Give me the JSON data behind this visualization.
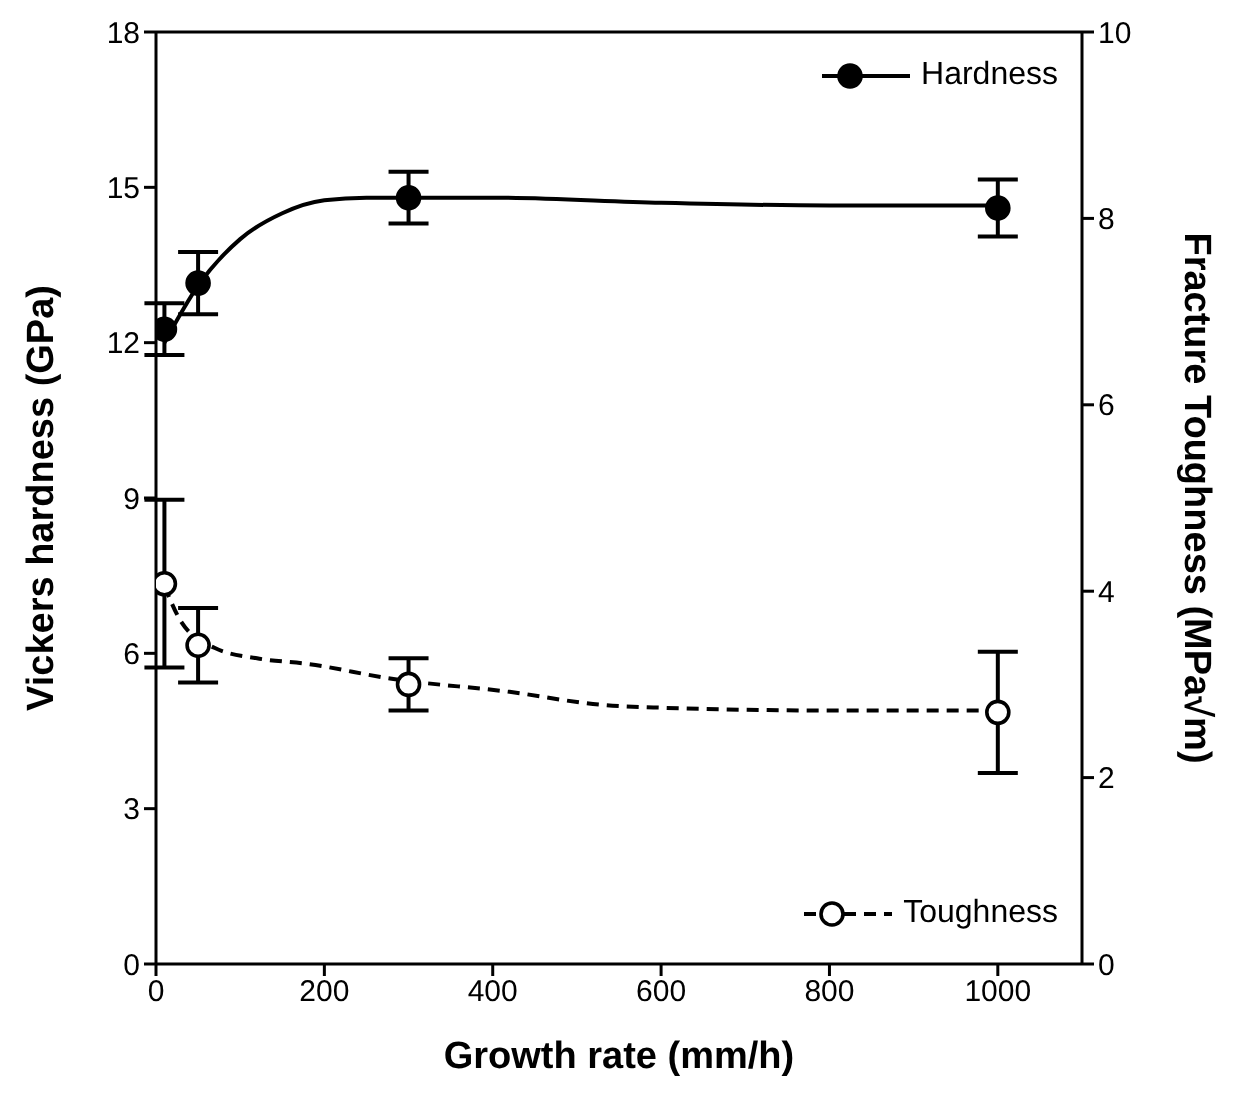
{
  "chart_data": {
    "type": "scatter",
    "xlabel": "Growth rate (mm/h)",
    "ylabel": "Vickers hardness (GPa)",
    "y2label": "Fracture Toughness (MPa√m)",
    "xlim": [
      0,
      1100
    ],
    "xticks": [
      0,
      200,
      400,
      600,
      800,
      1000
    ],
    "ylim": [
      0,
      18
    ],
    "yticks": [
      0,
      3,
      6,
      9,
      12,
      15,
      18
    ],
    "y2lim": [
      0,
      10
    ],
    "y2ticks": [
      0,
      2,
      4,
      6,
      8,
      10
    ],
    "marker": "circle",
    "legend": "right",
    "series": [
      {
        "name": "Hardness",
        "color": "#000000",
        "line_style": "solid",
        "x": [
          10,
          50,
          300,
          1000
        ],
        "values": [
          12.26,
          13.15,
          14.8,
          14.6
        ],
        "errors": [
          0.5,
          0.6,
          0.5,
          0.55
        ]
      },
      {
        "name": "Toughness",
        "axis": "y2",
        "color": "#ffffff",
        "line_style": "dashed",
        "x": [
          10,
          50,
          300,
          1000
        ],
        "values": [
          4.08,
          3.42,
          3.0,
          2.7
        ],
        "errors": [
          0.9,
          0.4,
          0.28,
          0.65
        ]
      },
      {
        "type": "line",
        "color": "#000000",
        "line_style": "solid",
        "marker": "none",
        "x": [
          10,
          50,
          100,
          150,
          200,
          250,
          400,
          600,
          800,
          1000
        ],
        "values": [
          12.0,
          13.1,
          14.0,
          14.5,
          14.75,
          14.8,
          14.8,
          14.7,
          14.65,
          14.65
        ]
      },
      {
        "type": "line",
        "axis": "y2",
        "color": "#000000",
        "line_style": "dashed",
        "marker": "none",
        "x": [
          10,
          30,
          70,
          120,
          180,
          280,
          420,
          530,
          600,
          800,
          1000
        ],
        "values": [
          4.06,
          3.67,
          3.39,
          3.28,
          3.22,
          3.06,
          2.92,
          2.78,
          2.75,
          2.72,
          2.72
        ]
      }
    ]
  }
}
